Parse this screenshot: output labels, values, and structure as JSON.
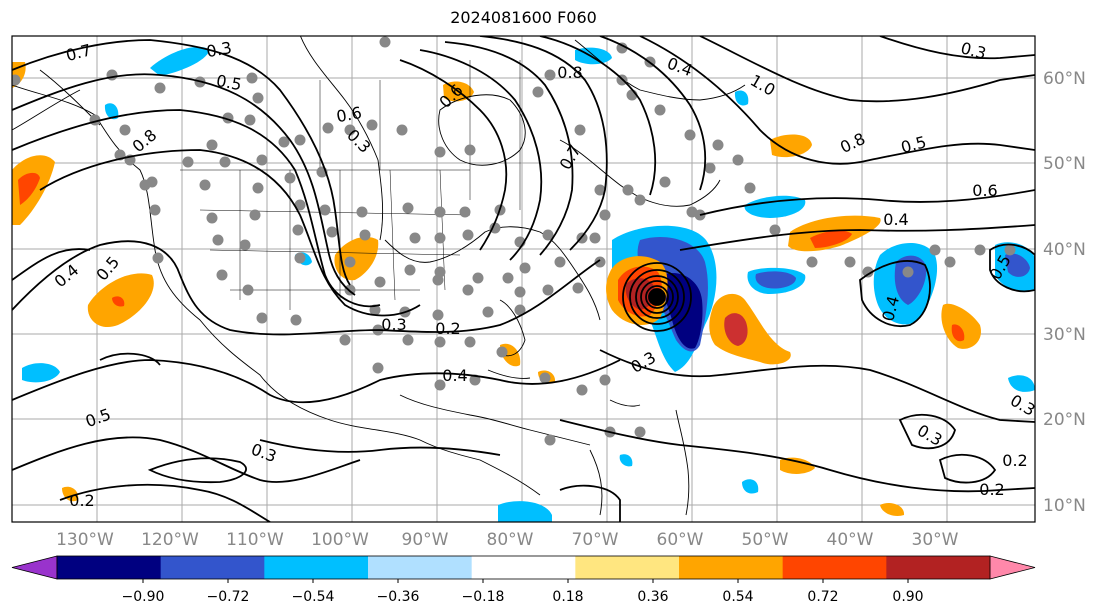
{
  "title": "2024081600 F060",
  "map": {
    "lon_labels": [
      "130°W",
      "120°W",
      "110°W",
      "100°W",
      "90°W",
      "80°W",
      "70°W",
      "60°W",
      "50°W",
      "40°W",
      "30°W"
    ],
    "lat_labels": [
      "60°N",
      "50°N",
      "40°N",
      "30°N",
      "20°N",
      "10°N"
    ],
    "contour_labels": [
      "0.7",
      "0.3",
      "0.5",
      "0.4",
      "0.6",
      "0.5",
      "0.8",
      "0.4",
      "1.0",
      "0.8",
      "0.5",
      "0.3",
      "0.6",
      "0.8",
      "0.3",
      "0.2",
      "0.3",
      "0.4",
      "0.5",
      "0.3",
      "0.2",
      "0.4",
      "0.6",
      "0.7",
      "0.3",
      "0.5",
      "0.4",
      "0.2",
      "0.3",
      "0.3",
      "0.2"
    ],
    "colors": {
      "neg_090": "#9933cc",
      "neg_072": "#000080",
      "neg_054": "#3355cc",
      "neg_036": "#00bfff",
      "neg_018": "#b0e0ff",
      "zero": "#ffffff",
      "pos_018": "#ffe680",
      "pos_036": "#ffa500",
      "pos_054": "#ff4500",
      "pos_072": "#cc3030",
      "pos_090": "#b22222",
      "pos_max": "#ff88aa"
    }
  },
  "colorbar": {
    "ticks": [
      "−0.90",
      "−0.72",
      "−0.54",
      "−0.36",
      "−0.18",
      "0.18",
      "0.36",
      "0.54",
      "0.72",
      "0.90"
    ],
    "colors": [
      "#9933cc",
      "#000080",
      "#3355cc",
      "#00bfff",
      "#b0e0ff",
      "#ffffff",
      "#ffe680",
      "#ffa500",
      "#ff4500",
      "#b22222",
      "#ff88aa"
    ]
  }
}
